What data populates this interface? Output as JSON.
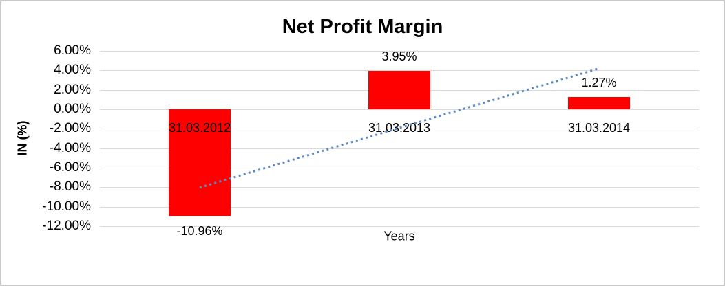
{
  "chart_data": {
    "type": "bar",
    "title": "Net Profit Margin",
    "xlabel": "Years",
    "ylabel": "IN (%)",
    "categories": [
      "31.03.2012",
      "31.03.2013",
      "31.03.2014"
    ],
    "values": [
      -10.96,
      3.95,
      1.27
    ],
    "value_labels": [
      "-10.96%",
      "3.95%",
      "1.27%"
    ],
    "ylim": [
      -12,
      6
    ],
    "ytick_step": 2,
    "yticks": [
      {
        "value": 6,
        "label": "6.00%"
      },
      {
        "value": 4,
        "label": "4.00%"
      },
      {
        "value": 2,
        "label": "2.00%"
      },
      {
        "value": 0,
        "label": "0.00%"
      },
      {
        "value": -2,
        "label": "-2.00%"
      },
      {
        "value": -4,
        "label": "-4.00%"
      },
      {
        "value": -6,
        "label": "-6.00%"
      },
      {
        "value": -8,
        "label": "-8.00%"
      },
      {
        "value": -10,
        "label": "-10.00%"
      },
      {
        "value": -12,
        "label": "-12.00%"
      }
    ],
    "grid": true,
    "legend": "none",
    "trendline": {
      "style": "dotted",
      "points": [
        {
          "category_index": 0,
          "value": -8.03
        },
        {
          "category_index": 2,
          "value": 4.2
        }
      ]
    },
    "colors": {
      "bar": "#ff0000",
      "gridline": "#d9d9d9",
      "trendline": "#5b8ac6",
      "text": "#000000",
      "chart_border": "#c9c9c9"
    }
  }
}
